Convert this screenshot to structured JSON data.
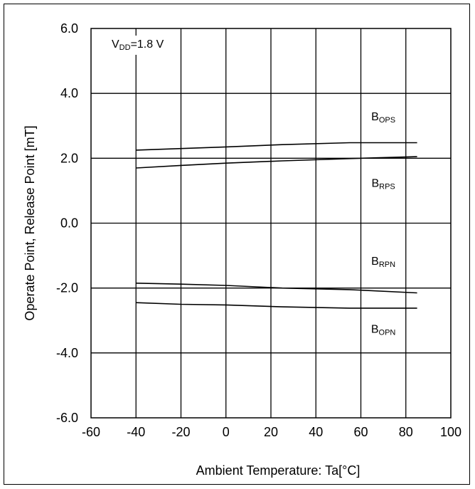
{
  "chart_data": {
    "type": "line",
    "title": "",
    "condition": {
      "main": "V",
      "sub": "DD",
      "rest": "=1.8 V"
    },
    "xlabel": "Ambient Temperature: Ta[°C]",
    "ylabel": "Operate Point, Release Point [mT]",
    "xlim": [
      -60,
      100
    ],
    "ylim": [
      -6.0,
      6.0
    ],
    "xticks": [
      -60,
      -40,
      -20,
      0,
      20,
      40,
      60,
      80,
      100
    ],
    "xtick_labels": [
      "-60",
      "-40",
      "-20",
      "0",
      "20",
      "40",
      "60",
      "80",
      "100"
    ],
    "yticks": [
      -6.0,
      -4.0,
      -2.0,
      0.0,
      2.0,
      4.0,
      6.0
    ],
    "ytick_labels": [
      "-6.0",
      "-4.0",
      "-2.0",
      "0.0",
      "2.0",
      "4.0",
      "6.0"
    ],
    "grid": true,
    "series": [
      {
        "name": "BOPS",
        "x": [
          -40,
          -20,
          0,
          25,
          55,
          85
        ],
        "y": [
          2.25,
          2.3,
          2.35,
          2.42,
          2.48,
          2.48
        ]
      },
      {
        "name": "BRPS",
        "x": [
          -40,
          -20,
          0,
          25,
          55,
          85
        ],
        "y": [
          1.7,
          1.78,
          1.85,
          1.92,
          1.99,
          2.05
        ]
      },
      {
        "name": "BRPN",
        "x": [
          -40,
          -20,
          0,
          25,
          55,
          85
        ],
        "y": [
          -1.85,
          -1.88,
          -1.92,
          -2.0,
          -2.05,
          -2.15
        ]
      },
      {
        "name": "BOPN",
        "x": [
          -40,
          -20,
          0,
          25,
          55,
          85
        ],
        "y": [
          -2.45,
          -2.5,
          -2.52,
          -2.58,
          -2.62,
          -2.62
        ]
      }
    ],
    "annotations": [
      {
        "main": "B",
        "sub": "OPS",
        "x": 70,
        "y": 3.3
      },
      {
        "main": "B",
        "sub": "RPS",
        "x": 70,
        "y": 1.25
      },
      {
        "main": "B",
        "sub": "RPN",
        "x": 70,
        "y": -1.15
      },
      {
        "main": "B",
        "sub": "OPN",
        "x": 70,
        "y": -3.25
      }
    ]
  }
}
